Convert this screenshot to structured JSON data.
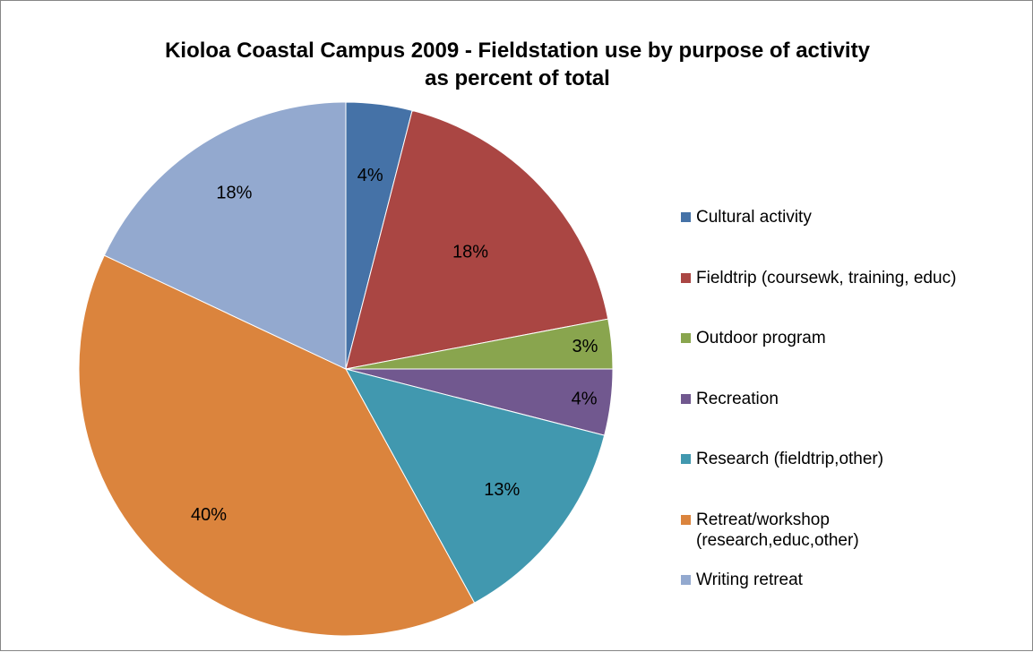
{
  "chart_data": {
    "type": "pie",
    "title": "Kioloa Coastal Campus 2009 - Fieldstation use by purpose of activity",
    "subtitle": "as percent of total",
    "start_angle_deg": 0,
    "direction": "clockwise",
    "legend_position": "right",
    "slices": [
      {
        "label": "Cultural activity",
        "value": 4,
        "display": "4%",
        "color": "#4572A7"
      },
      {
        "label": "Fieldtrip (coursewk, training, educ)",
        "value": 18,
        "display": "18%",
        "color": "#AA4643"
      },
      {
        "label": "Outdoor program",
        "value": 3,
        "display": "3%",
        "color": "#89A54E"
      },
      {
        "label": "Recreation",
        "value": 4,
        "display": "4%",
        "color": "#71588F"
      },
      {
        "label": "Research (fieldtrip,other)",
        "value": 13,
        "display": "13%",
        "color": "#4198AF"
      },
      {
        "label": "Retreat/workshop\n(research,educ,other)",
        "value": 40,
        "display": "40%",
        "color": "#DB843D"
      },
      {
        "label": "Writing retreat",
        "value": 18,
        "display": "18%",
        "color": "#93A9CF"
      }
    ]
  }
}
